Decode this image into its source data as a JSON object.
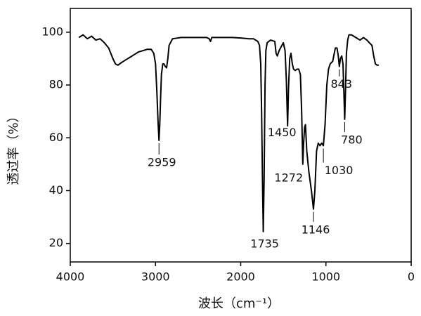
{
  "chart_data": {
    "type": "line",
    "xlabel": "波长（cm⁻¹）",
    "ylabel": "透过率（%）",
    "color": "#000000",
    "xlim": [
      4000,
      0
    ],
    "xticks": [
      4000,
      3000,
      2000,
      1000,
      0
    ],
    "ylim": [
      13,
      109
    ],
    "yticks": [
      20,
      40,
      60,
      80,
      100
    ],
    "x": [
      3900,
      3850,
      3800,
      3750,
      3700,
      3650,
      3600,
      3550,
      3500,
      3470,
      3440,
      3400,
      3350,
      3300,
      3250,
      3200,
      3150,
      3100,
      3050,
      3020,
      3000,
      2985,
      2970,
      2959,
      2950,
      2940,
      2930,
      2915,
      2900,
      2885,
      2870,
      2855,
      2840,
      2800,
      2700,
      2500,
      2400,
      2370,
      2355,
      2340,
      2300,
      2100,
      2000,
      1900,
      1850,
      1800,
      1780,
      1765,
      1755,
      1745,
      1735,
      1725,
      1715,
      1705,
      1690,
      1650,
      1600,
      1585,
      1570,
      1550,
      1500,
      1480,
      1465,
      1450,
      1440,
      1425,
      1410,
      1395,
      1380,
      1360,
      1340,
      1320,
      1300,
      1285,
      1272,
      1262,
      1250,
      1240,
      1225,
      1200,
      1170,
      1146,
      1130,
      1110,
      1090,
      1070,
      1050,
      1030,
      1010,
      990,
      970,
      950,
      920,
      890,
      870,
      855,
      843,
      830,
      815,
      800,
      790,
      780,
      770,
      760,
      745,
      730,
      700,
      650,
      600,
      560,
      520,
      490,
      460,
      440,
      420,
      400,
      380
    ],
    "values": [
      98,
      99,
      97.5,
      98.5,
      97,
      97.5,
      96,
      94,
      90,
      88,
      87.5,
      88.5,
      89.5,
      90.5,
      91.5,
      92.5,
      93,
      93.5,
      93.5,
      92,
      88,
      78,
      66,
      59,
      65,
      75,
      84,
      88,
      88,
      87,
      86.5,
      90,
      95,
      97.5,
      98,
      98,
      98,
      97.5,
      96.5,
      98,
      98,
      98,
      97.8,
      97.5,
      97.5,
      96.5,
      95,
      88,
      70,
      45,
      24.5,
      45,
      80,
      93,
      96,
      97,
      96.5,
      92,
      91,
      93,
      96,
      93,
      82,
      64.5,
      78,
      90,
      92,
      88,
      86,
      85.5,
      86,
      86,
      84,
      70,
      50,
      58,
      64,
      65,
      55,
      47,
      40,
      33,
      40,
      55,
      58,
      57,
      58,
      57,
      65,
      80,
      86,
      88,
      89,
      94,
      94,
      91,
      87,
      90,
      91,
      88,
      78,
      67,
      78,
      92,
      97,
      99,
      99,
      98,
      97,
      98,
      97,
      96,
      95,
      91,
      88,
      87.5,
      87.5
    ],
    "annotations": [
      2959,
      1735,
      1450,
      1272,
      1146,
      1030,
      843,
      780
    ]
  }
}
